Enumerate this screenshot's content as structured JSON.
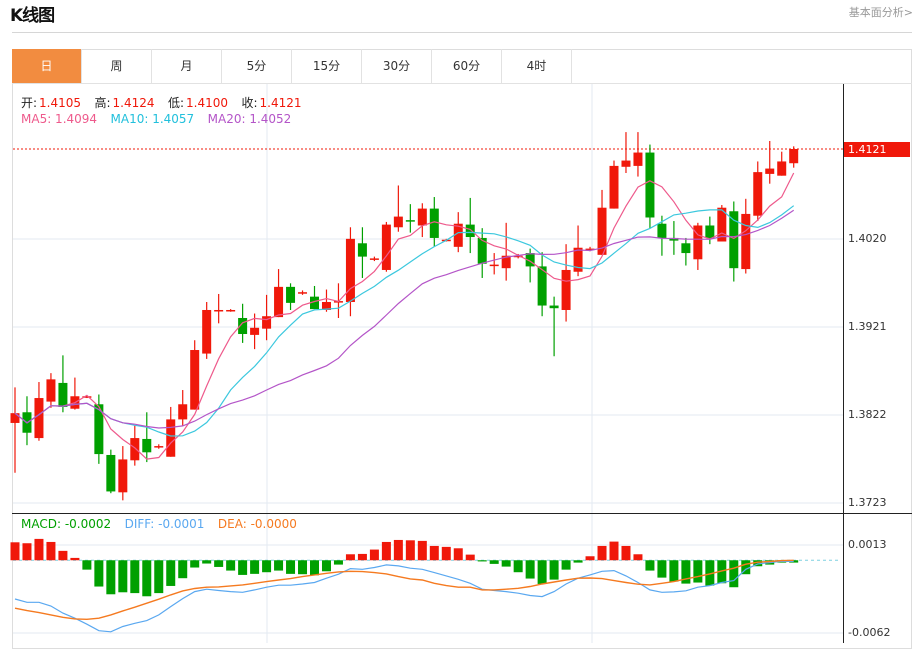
{
  "header": {
    "title": "K线图",
    "link": "基本面分析>"
  },
  "tabs": [
    {
      "label": "日",
      "active": true
    },
    {
      "label": "周"
    },
    {
      "label": "月"
    },
    {
      "label": "5分"
    },
    {
      "label": "15分"
    },
    {
      "label": "30分"
    },
    {
      "label": "60分"
    },
    {
      "label": "4时"
    }
  ],
  "ohlc": {
    "open_label": "开:",
    "open": "1.4105",
    "high_label": "高:",
    "high": "1.4124",
    "low_label": "低:",
    "low": "1.4100",
    "close_label": "收:",
    "close": "1.4121"
  },
  "ma": {
    "ma5": "MA5: 1.4094",
    "ma10": "MA10: 1.4057",
    "ma20": "MA20: 1.4052"
  },
  "macd_legend": {
    "macd": "MACD: -0.0002",
    "diff": "DIFF: -0.0001",
    "dea": "DEA: -0.0000"
  },
  "price_axis": {
    "current": "1.4121",
    "ticks": [
      "1.4020",
      "1.3921",
      "1.3822",
      "1.3723"
    ]
  },
  "macd_axis": {
    "ticks": [
      "0.0013",
      "-0.0062"
    ]
  },
  "colors": {
    "up": "#f0180a",
    "down": "#00a000",
    "ma5": "#ee5a8c",
    "ma10": "#3cc8de",
    "ma20": "#b455c8",
    "diff": "#5aa8f0",
    "dea": "#f57a20",
    "tab_active": "#f28c40"
  },
  "chart_data": {
    "type": "candlestick",
    "fields": [
      "open",
      "close",
      "high",
      "low"
    ],
    "candles": [
      [
        1.3813,
        1.3824,
        1.3853,
        1.3757
      ],
      [
        1.3825,
        1.3802,
        1.3843,
        1.3788
      ],
      [
        1.3796,
        1.3841,
        1.3859,
        1.3793
      ],
      [
        1.3837,
        1.3862,
        1.3869,
        1.383
      ],
      [
        1.3858,
        1.3831,
        1.3889,
        1.3825
      ],
      [
        1.3829,
        1.3843,
        1.3864,
        1.3828
      ],
      [
        1.3842,
        1.3843,
        1.3844,
        1.3841
      ],
      [
        1.3834,
        1.3778,
        1.3845,
        1.3767
      ],
      [
        1.3777,
        1.3736,
        1.3783,
        1.3734
      ],
      [
        1.3735,
        1.3772,
        1.3787,
        1.3726
      ],
      [
        1.3771,
        1.3796,
        1.381,
        1.3765
      ],
      [
        1.3795,
        1.378,
        1.3825,
        1.3769
      ],
      [
        1.3786,
        1.3787,
        1.3789,
        1.3784
      ],
      [
        1.3775,
        1.3817,
        1.3831,
        1.3775
      ],
      [
        1.3817,
        1.3834,
        1.385,
        1.381
      ],
      [
        1.3828,
        1.3895,
        1.3906,
        1.3828
      ],
      [
        1.3891,
        1.394,
        1.3949,
        1.3885
      ],
      [
        1.3939,
        1.394,
        1.3958,
        1.3925
      ],
      [
        1.3939,
        1.394,
        1.3941,
        1.3938
      ],
      [
        1.3931,
        1.3913,
        1.3947,
        1.3903
      ],
      [
        1.3912,
        1.392,
        1.3936,
        1.3896
      ],
      [
        1.3919,
        1.3933,
        1.3957,
        1.3906
      ],
      [
        1.3932,
        1.3966,
        1.3986,
        1.3932
      ],
      [
        1.3966,
        1.3948,
        1.397,
        1.394
      ],
      [
        1.3959,
        1.396,
        1.3962,
        1.3957
      ],
      [
        1.3955,
        1.3941,
        1.3967,
        1.3941
      ],
      [
        1.394,
        1.3949,
        1.3963,
        1.3938
      ],
      [
        1.3949,
        1.395,
        1.397,
        1.3931
      ],
      [
        1.3949,
        1.402,
        1.4033,
        1.3933
      ],
      [
        1.4015,
        1.4,
        1.4033,
        1.3976
      ],
      [
        1.3997,
        1.3998,
        1.4,
        1.3995
      ],
      [
        1.3985,
        1.4036,
        1.4039,
        1.3983
      ],
      [
        1.4033,
        1.4045,
        1.408,
        1.4028
      ],
      [
        1.4041,
        1.404,
        1.4059,
        1.4027
      ],
      [
        1.4035,
        1.4054,
        1.406,
        1.4022
      ],
      [
        1.4054,
        1.4021,
        1.4067,
        1.4011
      ],
      [
        1.4018,
        1.4019,
        1.402,
        1.4017
      ],
      [
        1.4011,
        1.4037,
        1.405,
        1.4005
      ],
      [
        1.4036,
        1.4022,
        1.4066,
        1.4004
      ],
      [
        1.4021,
        1.3992,
        1.4032,
        1.3976
      ],
      [
        1.399,
        1.3991,
        1.4004,
        1.398
      ],
      [
        1.3987,
        1.4001,
        1.4038,
        1.3973
      ],
      [
        1.4,
        1.4001,
        1.4003,
        1.3998
      ],
      [
        1.4004,
        1.3989,
        1.4009,
        1.3971
      ],
      [
        1.3989,
        1.3945,
        1.4005,
        1.3933
      ],
      [
        1.3945,
        1.3942,
        1.3955,
        1.3888
      ],
      [
        1.394,
        1.3985,
        1.4014,
        1.3927
      ],
      [
        1.3983,
        1.401,
        1.4035,
        1.3978
      ],
      [
        1.4008,
        1.4009,
        1.4011,
        1.4006
      ],
      [
        1.4002,
        1.4055,
        1.4075,
        1.4002
      ],
      [
        1.4054,
        1.4102,
        1.4108,
        1.4054
      ],
      [
        1.4101,
        1.4108,
        1.414,
        1.4094
      ],
      [
        1.4102,
        1.4117,
        1.414,
        1.409
      ],
      [
        1.4117,
        1.4044,
        1.4126,
        1.4032
      ],
      [
        1.4037,
        1.4021,
        1.4046,
        1.4001
      ],
      [
        1.4021,
        1.4018,
        1.404,
        1.4002
      ],
      [
        1.4015,
        1.4004,
        1.4021,
        1.399
      ],
      [
        1.3997,
        1.4035,
        1.4038,
        1.3985
      ],
      [
        1.4035,
        1.4021,
        1.4045,
        1.4014
      ],
      [
        1.4017,
        1.4055,
        1.4058,
        1.4017
      ],
      [
        1.4051,
        1.3987,
        1.4062,
        1.3972
      ],
      [
        1.3986,
        1.4048,
        1.4065,
        1.3981
      ],
      [
        1.4046,
        1.4095,
        1.4107,
        1.404
      ],
      [
        1.4093,
        1.4099,
        1.413,
        1.4082
      ],
      [
        1.4091,
        1.4107,
        1.4118,
        1.4091
      ],
      [
        1.4105,
        1.4121,
        1.4124,
        1.41
      ]
    ],
    "ma_periods": [
      5,
      10,
      20
    ],
    "price_range": [
      1.3723,
      1.4121
    ],
    "macd": {
      "hist": [
        0.00153,
        0.00145,
        0.00182,
        0.00156,
        0.0008,
        0.0002,
        -0.0008,
        -0.00224,
        -0.0029,
        -0.00273,
        -0.0028,
        -0.00307,
        -0.0028,
        -0.00219,
        -0.00153,
        -0.00062,
        -0.00028,
        -0.00057,
        -0.00088,
        -0.00125,
        -0.00116,
        -0.00102,
        -0.00088,
        -0.00116,
        -0.00119,
        -0.00128,
        -0.00094,
        -0.00037,
        0.00051,
        0.00054,
        0.00091,
        0.00156,
        0.00173,
        0.0017,
        0.00165,
        0.00122,
        0.00114,
        0.00102,
        0.00048,
        -0.0001,
        -0.00031,
        -0.00054,
        -0.00102,
        -0.00156,
        -0.00202,
        -0.00165,
        -0.0008,
        -0.0002,
        0.00034,
        0.00122,
        0.00159,
        0.00122,
        0.00051,
        -0.00088,
        -0.00148,
        -0.00182,
        -0.00199,
        -0.0019,
        -0.00216,
        -0.00196,
        -0.0023,
        -0.00119,
        -0.00051,
        -0.00037,
        -0.0002,
        -0.0002
      ],
      "diff": [
        -0.0033,
        -0.00358,
        -0.00358,
        -0.0039,
        -0.0045,
        -0.00494,
        -0.00545,
        -0.006,
        -0.0061,
        -0.00565,
        -0.00537,
        -0.00514,
        -0.00466,
        -0.00395,
        -0.00327,
        -0.00267,
        -0.00247,
        -0.00258,
        -0.00267,
        -0.00273,
        -0.00253,
        -0.0023,
        -0.00213,
        -0.00213,
        -0.00202,
        -0.0019,
        -0.00153,
        -0.00119,
        -0.00071,
        -0.00077,
        -0.00062,
        -0.0004,
        -0.00048,
        -0.00068,
        -0.00077,
        -0.00105,
        -0.00133,
        -0.00162,
        -0.00196,
        -0.00247,
        -0.00258,
        -0.00267,
        -0.00281,
        -0.003,
        -0.0031,
        -0.00267,
        -0.00202,
        -0.00153,
        -0.00125,
        -0.00094,
        -0.00088,
        -0.00133,
        -0.0019,
        -0.00253,
        -0.00273,
        -0.0027,
        -0.0026,
        -0.0023,
        -0.00216,
        -0.0019,
        -0.00173,
        -0.00077,
        -0.00031,
        -0.0002,
        -9e-05,
        -0.0001
      ],
      "dea": [
        -0.00409,
        -0.00429,
        -0.00446,
        -0.00466,
        -0.00486,
        -0.005,
        -0.00503,
        -0.00494,
        -0.00466,
        -0.00432,
        -0.004,
        -0.00366,
        -0.00332,
        -0.00295,
        -0.00261,
        -0.00241,
        -0.0023,
        -0.00227,
        -0.00219,
        -0.0021,
        -0.00196,
        -0.00182,
        -0.00168,
        -0.00156,
        -0.00139,
        -0.00125,
        -0.00111,
        -0.00099,
        -0.00094,
        -0.00097,
        -0.00105,
        -0.00116,
        -0.00139,
        -0.00159,
        -0.00168,
        -0.00196,
        -0.00216,
        -0.0023,
        -0.0023,
        -0.00253,
        -0.00253,
        -0.00247,
        -0.00239,
        -0.00224,
        -0.00202,
        -0.00185,
        -0.00168,
        -0.00153,
        -0.00151,
        -0.00156,
        -0.00173,
        -0.0019,
        -0.00204,
        -0.0021,
        -0.00196,
        -0.00182,
        -0.00159,
        -0.00139,
        -0.00116,
        -0.00091,
        -0.00068,
        -0.00034,
        -0.00017,
        -0.00011,
        -3e-05,
        0
      ],
      "range": [
        -0.0062,
        0.0013
      ]
    }
  }
}
